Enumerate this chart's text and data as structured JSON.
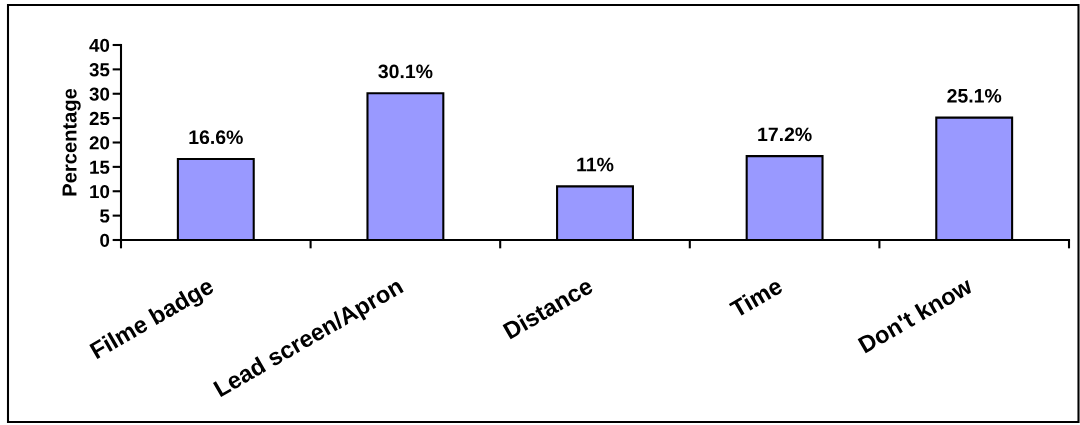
{
  "chart_data": {
    "type": "bar",
    "categories": [
      "Filme badge",
      "Lead screen/Apron",
      "Distance",
      "Time",
      "Don't know"
    ],
    "values": [
      16.6,
      30.1,
      11,
      17.2,
      25.1
    ],
    "color": "#9999ff",
    "value_labels": [
      "16.6%",
      "30.1%",
      "11%",
      "17.2%",
      "25.1%"
    ],
    "ylabel": "Percentage",
    "ylim": [
      0,
      40
    ],
    "yticks": [
      0,
      5,
      10,
      15,
      20,
      25,
      30,
      35,
      40
    ]
  }
}
